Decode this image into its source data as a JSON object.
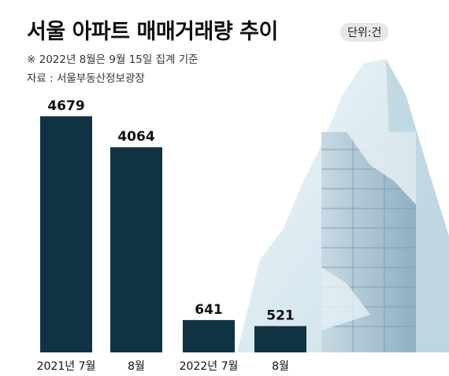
{
  "title": "서울 아파트 매매거래량 추이",
  "unit_label": "단위:건",
  "notes": {
    "footnote": "※ 2022년 8월은 9월 15일 집계 기준",
    "source": "자료 : 서울부동산정보광장"
  },
  "colors": {
    "bar": "#0f3343",
    "label_text": "#111111",
    "axis_text": "#111111",
    "mountain": "#d6e8ef",
    "building": "#a9c5d3"
  },
  "chart_data": {
    "type": "bar",
    "title": "서울 아파트 매매거래량 추이",
    "categories": [
      "2021년 7월",
      "8월",
      "2022년 7월",
      "8월"
    ],
    "values": [
      4679,
      4064,
      641,
      521
    ],
    "ylim": [
      0,
      4800
    ],
    "xlabel": "",
    "ylabel": "",
    "unit": "건",
    "grid": false,
    "legend": "none"
  }
}
